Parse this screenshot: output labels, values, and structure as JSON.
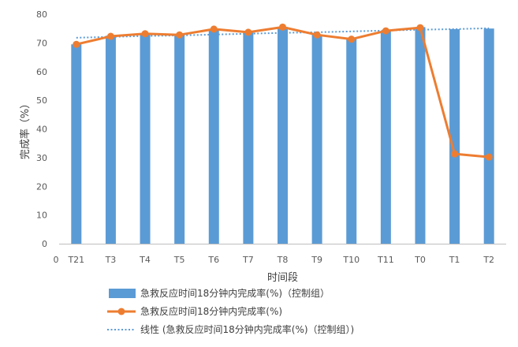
{
  "chart_data": {
    "type": "bar",
    "title": "",
    "xlabel": "时间段",
    "ylabel": "完成率（%）",
    "ylim": [
      0,
      80
    ],
    "yticks": [
      0,
      10,
      20,
      30,
      40,
      50,
      60,
      70,
      80
    ],
    "x_origin_label": "0",
    "categories": [
      "T21",
      "T3",
      "T4",
      "T5",
      "T6",
      "T7",
      "T8",
      "T9",
      "T10",
      "T11",
      "T0",
      "T1",
      "T2"
    ],
    "series": [
      {
        "name": "急救反应时间18分钟内完成率(%)（控制组）",
        "type": "bar",
        "color": "#5B9BD5",
        "values": [
          69.5,
          72.5,
          73.2,
          73.0,
          74.8,
          73.8,
          75.5,
          72.8,
          71.5,
          74.2,
          75.5,
          74.8,
          75.0
        ]
      },
      {
        "name": "急救反应时间18分钟内完成率(%)",
        "type": "line",
        "color": "#ED7D31",
        "values": [
          69.5,
          72.3,
          73.2,
          72.8,
          74.8,
          73.7,
          75.5,
          72.8,
          71.3,
          74.2,
          75.3,
          31.3,
          30.2
        ]
      },
      {
        "name": "线性 (急救反应时间18分钟内完成率(%)（控制组）)",
        "type": "trendline",
        "color": "#5B9BD5",
        "values": [
          71.8,
          72.1,
          72.4,
          72.6,
          72.9,
          73.2,
          73.5,
          73.7,
          74.0,
          74.3,
          74.6,
          74.8,
          75.1
        ]
      }
    ],
    "legend_position": "bottom-left",
    "grid": false
  }
}
